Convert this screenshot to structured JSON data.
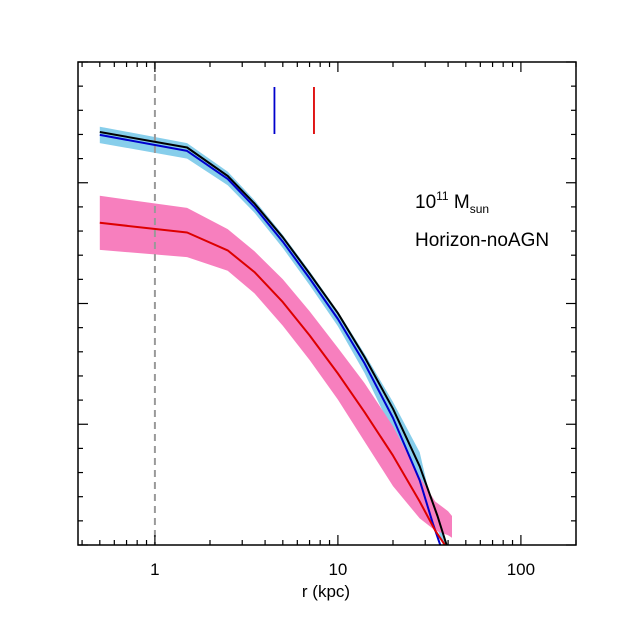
{
  "chart_data": {
    "type": "line",
    "title": "",
    "xlabel": "r (kpc)",
    "ylabel": "",
    "xscale": "log",
    "xlim": [
      0.38,
      200
    ],
    "ylim": [
      0,
      1
    ],
    "xtick_labels": [
      {
        "value": 1,
        "label": "1"
      },
      {
        "value": 10,
        "label": "10"
      },
      {
        "value": 100,
        "label": "100"
      }
    ],
    "annotation_line1_base": "10",
    "annotation_line1_exp": "11",
    "annotation_line1_unit": " M",
    "annotation_line1_sub": "sun",
    "annotation_line2": "Horizon-noAGN",
    "reference_line_x": 1,
    "markers": [
      {
        "x": 4.5,
        "color": "#0000cc"
      },
      {
        "x": 7.4,
        "color": "#dd0000"
      }
    ],
    "series": [
      {
        "color": "#000000",
        "x": [
          0.5,
          1.5,
          2.5,
          3.5,
          5,
          7,
          10,
          14,
          20,
          28,
          35,
          40,
          42
        ],
        "y": [
          0.855,
          0.823,
          0.764,
          0.707,
          0.637,
          0.562,
          0.48,
          0.389,
          0.282,
          0.163,
          0.06,
          -0.01,
          -0.04
        ]
      },
      {
        "color": "#0000cc",
        "x": [
          0.5,
          1.5,
          2.5,
          3.5,
          5,
          7,
          10,
          14,
          20,
          28,
          33,
          37,
          39
        ],
        "y": [
          0.849,
          0.816,
          0.758,
          0.7,
          0.628,
          0.552,
          0.468,
          0.376,
          0.263,
          0.134,
          0.045,
          -0.01,
          -0.04
        ],
        "band_lower": [
          0.832,
          0.8,
          0.745,
          0.688,
          0.615,
          0.538,
          0.453,
          0.356,
          0.233,
          0.083,
          0.055,
          0.01,
          -0.04
        ],
        "band_upper": [
          0.866,
          0.832,
          0.773,
          0.714,
          0.642,
          0.567,
          0.484,
          0.396,
          0.296,
          0.192,
          0.075,
          0.03,
          0.0
        ]
      },
      {
        "color": "#dd0000",
        "x": [
          0.5,
          1.5,
          2.5,
          3.5,
          5,
          7,
          10,
          14,
          20,
          28,
          34,
          40,
          42
        ],
        "y": [
          0.667,
          0.647,
          0.61,
          0.565,
          0.503,
          0.434,
          0.355,
          0.275,
          0.185,
          0.09,
          0.03,
          -0.01,
          -0.04
        ],
        "band_lower": [
          0.611,
          0.596,
          0.568,
          0.521,
          0.454,
          0.383,
          0.301,
          0.214,
          0.122,
          0.055,
          0.03,
          0.02,
          0.015
        ],
        "band_upper": [
          0.723,
          0.698,
          0.654,
          0.608,
          0.55,
          0.484,
          0.408,
          0.335,
          0.246,
          0.141,
          0.09,
          0.07,
          0.06
        ]
      }
    ]
  }
}
